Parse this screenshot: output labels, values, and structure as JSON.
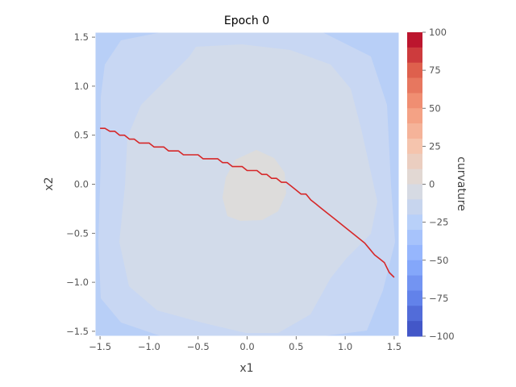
{
  "chart_data": {
    "type": "heatmap",
    "title": "Epoch 0",
    "xlabel": "x1",
    "ylabel": "x2",
    "xlim": [
      -1.55,
      1.55
    ],
    "ylim": [
      -1.55,
      1.55
    ],
    "xticks": [
      -1.5,
      -1.0,
      -0.5,
      0.0,
      0.5,
      1.0,
      1.5
    ],
    "xtick_labels": [
      "−1.5",
      "−1.0",
      "−0.5",
      "0.0",
      "0.5",
      "1.0",
      "1.5"
    ],
    "yticks": [
      -1.5,
      -1.0,
      -0.5,
      0.0,
      0.5,
      1.0,
      1.5
    ],
    "ytick_labels": [
      "−1.5",
      "−1.0",
      "−0.5",
      "0.0",
      "0.5",
      "1.0",
      "1.5"
    ],
    "grid": false,
    "colorbar": {
      "label": "curvature",
      "range": [
        -100,
        100
      ],
      "ticks": [
        100,
        75,
        50,
        25,
        0,
        -25,
        -50,
        -75,
        -100
      ],
      "tick_labels": [
        "100",
        "75",
        "50",
        "25",
        "0",
        "−25",
        "−50",
        "−75",
        "−100"
      ],
      "colormap": "coolwarm"
    },
    "regions": [
      {
        "level": -35,
        "color": "#b8cff7",
        "description": "outer"
      },
      {
        "level": -22,
        "color": "#c8d7f3",
        "description": "ring"
      },
      {
        "level": -10,
        "color": "#d2dbea",
        "description": "inner"
      },
      {
        "level": 0,
        "color": "#dddcdb",
        "description": "center"
      }
    ],
    "series": [
      {
        "color": "#d62728",
        "x": [
          -1.5,
          -1.45,
          -1.4,
          -1.35,
          -1.3,
          -1.25,
          -1.2,
          -1.15,
          -1.1,
          -1.05,
          -1.0,
          -0.95,
          -0.9,
          -0.85,
          -0.8,
          -0.75,
          -0.7,
          -0.65,
          -0.6,
          -0.55,
          -0.5,
          -0.45,
          -0.4,
          -0.35,
          -0.3,
          -0.25,
          -0.2,
          -0.15,
          -0.1,
          -0.05,
          0.0,
          0.05,
          0.1,
          0.15,
          0.2,
          0.25,
          0.3,
          0.35,
          0.4,
          0.45,
          0.5,
          0.55,
          0.6,
          0.65,
          0.7,
          0.75,
          0.8,
          0.9,
          1.0,
          1.1,
          1.2,
          1.25,
          1.3,
          1.35,
          1.4,
          1.45,
          1.5
        ],
        "y": [
          0.57,
          0.57,
          0.54,
          0.54,
          0.5,
          0.5,
          0.46,
          0.46,
          0.42,
          0.42,
          0.42,
          0.38,
          0.38,
          0.38,
          0.34,
          0.34,
          0.34,
          0.3,
          0.3,
          0.3,
          0.3,
          0.26,
          0.26,
          0.26,
          0.26,
          0.22,
          0.22,
          0.18,
          0.18,
          0.18,
          0.14,
          0.14,
          0.14,
          0.1,
          0.1,
          0.06,
          0.06,
          0.02,
          0.02,
          -0.02,
          -0.06,
          -0.1,
          -0.1,
          -0.16,
          -0.2,
          -0.24,
          -0.28,
          -0.36,
          -0.44,
          -0.52,
          -0.6,
          -0.66,
          -0.72,
          -0.76,
          -0.8,
          -0.9,
          -0.95
        ]
      }
    ]
  }
}
